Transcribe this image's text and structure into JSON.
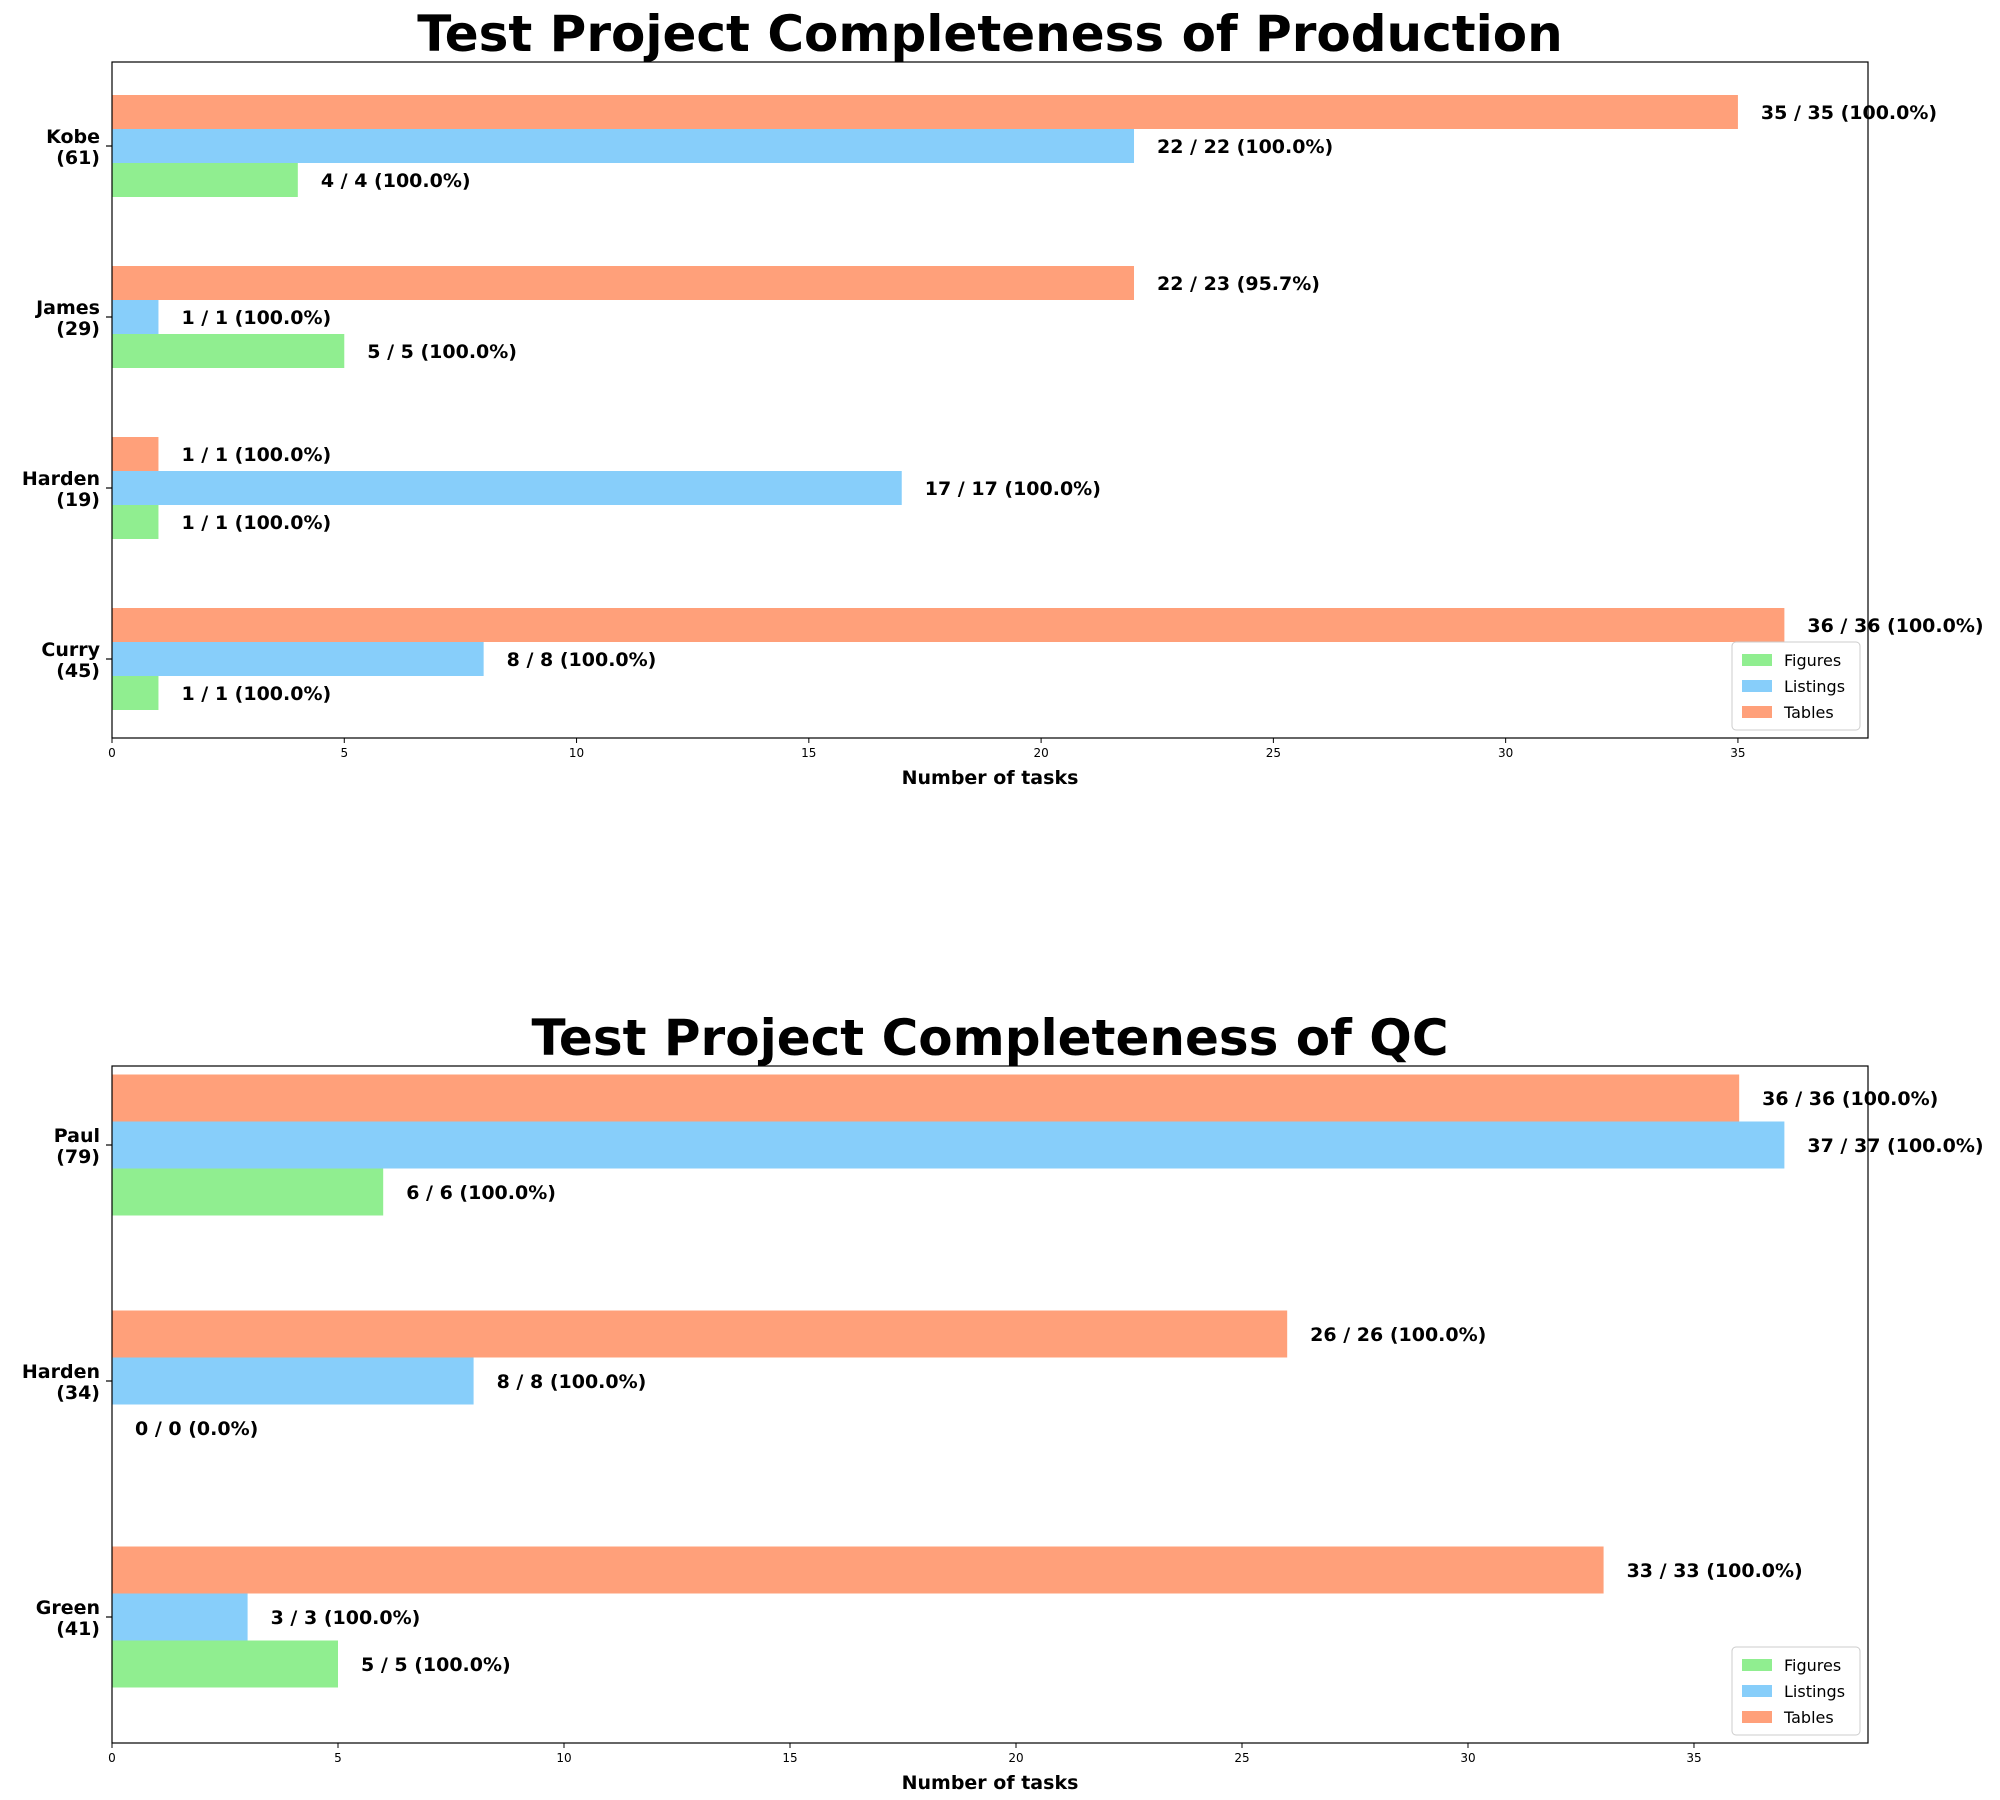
{
  "chart_data": [
    {
      "type": "bar",
      "orientation": "horizontal",
      "title": "Test Project Completeness of Production",
      "xlabel": "Number of tasks",
      "xlim": [
        0,
        37.8
      ],
      "xticks": [
        0,
        5,
        10,
        15,
        20,
        25,
        30,
        35
      ],
      "categories": [
        "Kobe\n(61)",
        "James\n(29)",
        "Harden\n(19)",
        "Curry\n(45)"
      ],
      "series": [
        {
          "name": "Figures",
          "color": "#90EE90",
          "values": [
            4,
            5,
            1,
            1
          ],
          "labels": [
            "4 / 4 (100.0%)",
            "5 / 5 (100.0%)",
            "1 / 1 (100.0%)",
            "1 / 1 (100.0%)"
          ]
        },
        {
          "name": "Listings",
          "color": "#87CEFA",
          "values": [
            22,
            1,
            17,
            8
          ],
          "labels": [
            "22 / 22 (100.0%)",
            "1 / 1 (100.0%)",
            "17 / 17 (100.0%)",
            "8 / 8 (100.0%)"
          ]
        },
        {
          "name": "Tables",
          "color": "#FFA07A",
          "values": [
            35,
            22,
            1,
            36
          ],
          "labels": [
            "35 / 35 (100.0%)",
            "22 / 23 (95.7%)",
            "1 / 1 (100.0%)",
            "36 / 36 (100.0%)"
          ]
        }
      ],
      "legend": "lower-right"
    },
    {
      "type": "bar",
      "orientation": "horizontal",
      "title": "Test Project Completeness of QC",
      "xlabel": "Number of tasks",
      "xlim": [
        0,
        38.85
      ],
      "xticks": [
        0,
        5,
        10,
        15,
        20,
        25,
        30,
        35
      ],
      "categories": [
        "Paul\n(79)",
        "Harden\n(34)",
        "Green\n(41)"
      ],
      "series": [
        {
          "name": "Figures",
          "color": "#90EE90",
          "values": [
            6,
            0,
            5
          ],
          "labels": [
            "6 / 6 (100.0%)",
            "0 / 0 (0.0%)",
            "5 / 5 (100.0%)"
          ]
        },
        {
          "name": "Listings",
          "color": "#87CEFA",
          "values": [
            37,
            8,
            3
          ],
          "labels": [
            "37 / 37 (100.0%)",
            "8 / 8 (100.0%)",
            "3 / 3 (100.0%)"
          ]
        },
        {
          "name": "Tables",
          "color": "#FFA07A",
          "values": [
            36,
            26,
            33
          ],
          "labels": [
            "36 / 36 (100.0%)",
            "26 / 26 (100.0%)",
            "33 / 33 (100.0%)"
          ]
        }
      ],
      "legend": "lower-right"
    }
  ]
}
